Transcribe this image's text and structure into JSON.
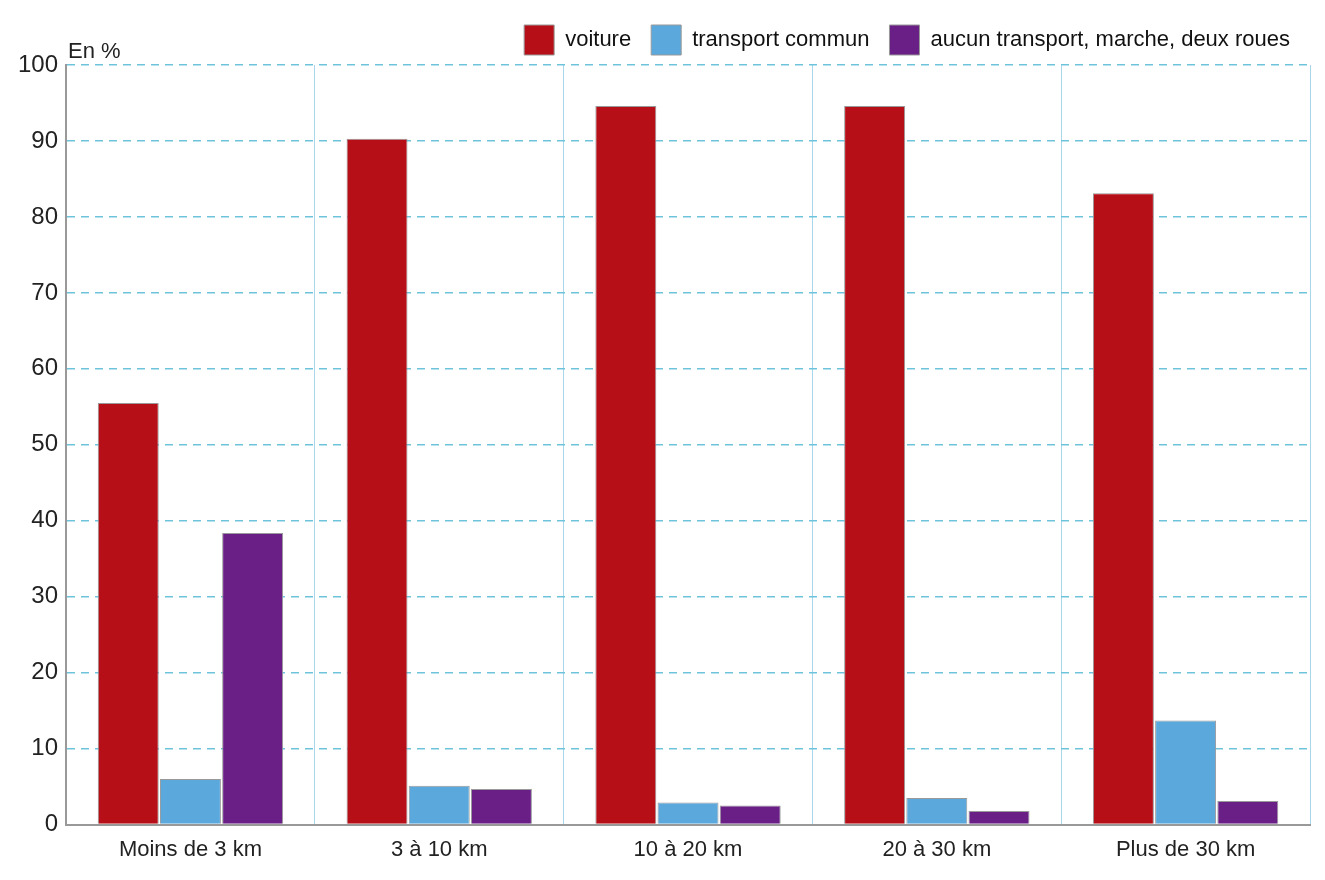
{
  "chart_data": {
    "type": "bar",
    "ylabel": "En %",
    "categories": [
      "Moins de 3 km",
      "3 à 10 km",
      "10 à 20 km",
      "20 à 30 km",
      "Plus de 30 km"
    ],
    "series": [
      {
        "name": "voiture",
        "color": "#b70f17",
        "values": [
          55.5,
          90.3,
          94.6,
          94.6,
          83.1
        ]
      },
      {
        "name": "transport commun",
        "color": "#5aa8dc",
        "values": [
          6.0,
          5.1,
          2.9,
          3.5,
          13.7
        ]
      },
      {
        "name": "aucun transport, marche, deux roues",
        "color": "#6a1f87",
        "values": [
          38.4,
          4.7,
          2.5,
          1.8,
          3.1
        ]
      }
    ],
    "ylim": [
      0,
      100
    ],
    "yticks": [
      0,
      10,
      20,
      30,
      40,
      50,
      60,
      70,
      80,
      90,
      100
    ],
    "grid": true,
    "legend": "top right"
  }
}
